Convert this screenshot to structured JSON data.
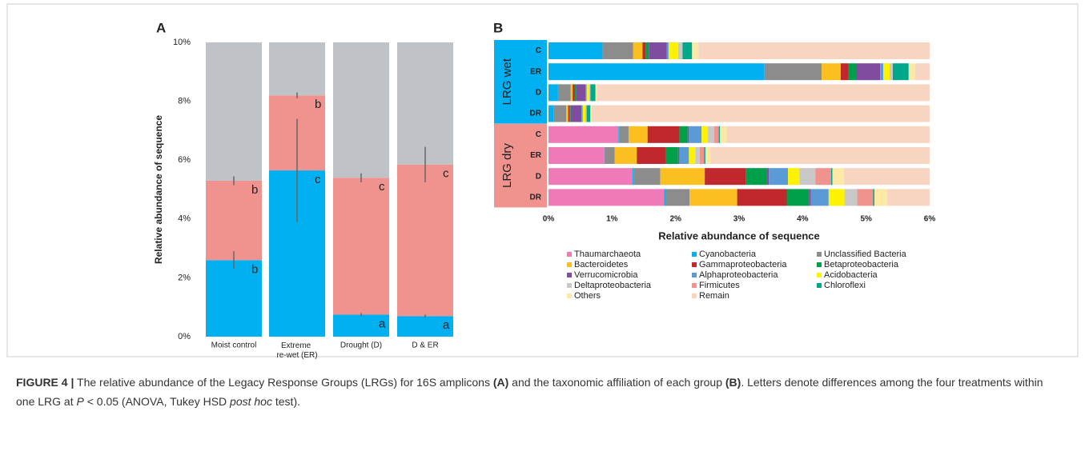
{
  "chart_data": [
    {
      "type": "stacked_bar",
      "panel": "A",
      "y_label": "Relative abundance of sequence",
      "categories": [
        "Moist control",
        "Extreme re-wet (ER)",
        "Drought (D)",
        "D & ER"
      ],
      "ylim": [
        0,
        10
      ],
      "yticks": [
        {
          "value": 0,
          "label": "0%"
        },
        {
          "value": 2,
          "label": "2%"
        },
        {
          "value": 4,
          "label": "4%"
        },
        {
          "value": 6,
          "label": "6%"
        },
        {
          "value": 8,
          "label": "8%"
        },
        {
          "value": 10,
          "label": "10%"
        }
      ],
      "series": [
        {
          "name": "LRG wet",
          "color": "#00b0f0",
          "values": [
            2.6,
            5.65,
            0.75,
            0.7
          ],
          "errors": [
            0.3,
            1.75,
            0.05,
            0.05
          ],
          "letters": [
            "b",
            "c",
            "a",
            "a"
          ]
        },
        {
          "name": "LRG dry",
          "color": "#f0928e",
          "values": [
            2.7,
            2.55,
            4.65,
            5.15
          ],
          "errors": [
            0.15,
            0.1,
            0.15,
            0.6
          ],
          "letters": [
            "b",
            "b",
            "c",
            "c"
          ]
        },
        {
          "name": "Others",
          "color": "#bfc3c8",
          "values": [
            4.7,
            1.8,
            4.6,
            4.15
          ]
        }
      ]
    },
    {
      "type": "stacked_barh",
      "panel": "B",
      "x_label": "Relative abundance of sequence",
      "group_labels": [
        "LRG wet",
        "LRG dry"
      ],
      "group_colors": [
        "#00b0f0",
        "#f0928e"
      ],
      "categories": [
        "C",
        "ER",
        "D",
        "DR",
        "C",
        "ER",
        "D",
        "DR"
      ],
      "xlim": [
        0,
        6
      ],
      "xticks": [
        {
          "value": 0,
          "label": "0%"
        },
        {
          "value": 1,
          "label": "1%"
        },
        {
          "value": 2,
          "label": "2%"
        },
        {
          "value": 3,
          "label": "3%"
        },
        {
          "value": 4,
          "label": "4%"
        },
        {
          "value": 5,
          "label": "5%"
        },
        {
          "value": 6,
          "label": "6%"
        }
      ],
      "series": [
        {
          "name": "Thaumarchaeota",
          "color": "#f07ab8",
          "values": [
            0,
            0,
            0,
            0,
            1.1,
            0.88,
            1.32,
            1.82
          ]
        },
        {
          "name": "Cyanobacteria",
          "color": "#00b0f0",
          "values": [
            0.85,
            3.4,
            0.15,
            0.08,
            0.01,
            0.01,
            0.02,
            0.02
          ]
        },
        {
          "name": "Unclassified Bacteria",
          "color": "#8c8c8c",
          "values": [
            0.48,
            0.9,
            0.2,
            0.2,
            0.15,
            0.15,
            0.42,
            0.38
          ]
        },
        {
          "name": "Bacteroidetes",
          "color": "#fbbf1f",
          "values": [
            0.15,
            0.3,
            0.03,
            0.03,
            0.3,
            0.35,
            0.7,
            0.75
          ]
        },
        {
          "name": "Gammaproteobacteria",
          "color": "#c0282d",
          "values": [
            0.05,
            0.12,
            0.03,
            0.02,
            0.5,
            0.45,
            0.65,
            0.78
          ]
        },
        {
          "name": "Betaproteobacteria",
          "color": "#00a04b",
          "values": [
            0.05,
            0.12,
            0.02,
            0.02,
            0.13,
            0.2,
            0.33,
            0.35
          ]
        },
        {
          "name": "Verrucomicrobia",
          "color": "#7f4ca0",
          "values": [
            0.28,
            0.38,
            0.15,
            0.17,
            0.02,
            0.02,
            0.03,
            0.03
          ]
        },
        {
          "name": "Alphaproteobacteria",
          "color": "#5b9bd5",
          "values": [
            0.03,
            0.05,
            0.02,
            0.02,
            0.2,
            0.15,
            0.3,
            0.28
          ]
        },
        {
          "name": "Acidobacteria",
          "color": "#fff200",
          "values": [
            0.15,
            0.1,
            0.04,
            0.04,
            0.1,
            0.1,
            0.18,
            0.25
          ]
        },
        {
          "name": "Deltaproteobacteria",
          "color": "#c8c8c8",
          "values": [
            0.07,
            0.05,
            0.02,
            0.02,
            0.1,
            0.07,
            0.25,
            0.2
          ]
        },
        {
          "name": "Firmicutes",
          "color": "#f0928e",
          "values": [
            0,
            0,
            0,
            0,
            0.07,
            0.07,
            0.25,
            0.25
          ]
        },
        {
          "name": "Chloroflexi",
          "color": "#00a88a",
          "values": [
            0.15,
            0.25,
            0.08,
            0.06,
            0.02,
            0.02,
            0.02,
            0.02
          ]
        },
        {
          "name": "Others",
          "color": "#fde9a6",
          "values": [
            0.1,
            0.1,
            0.02,
            0.02,
            0.1,
            0.08,
            0.18,
            0.2
          ]
        },
        {
          "name": "Remain",
          "color": "#f7d5c0",
          "values": [
            3.64,
            0.23,
            5.24,
            5.32,
            3.2,
            3.45,
            1.35,
            0.67
          ]
        }
      ]
    }
  ],
  "caption": [
    {
      "text": "FIGURE 4 |",
      "style": "bold"
    },
    {
      "text": " The relative abundance of the Legacy Response Groups (LRGs) for 16S amplicons ",
      "style": "normal"
    },
    {
      "text": "(A)",
      "style": "bold"
    },
    {
      "text": " and the taxonomic affiliation of each group ",
      "style": "normal"
    },
    {
      "text": "(B)",
      "style": "bold"
    },
    {
      "text": ". Letters denote differences among the four treatments within one LRG at ",
      "style": "normal"
    },
    {
      "text": "P",
      "style": "italic"
    },
    {
      "text": " < 0.05 (ANOVA, Tukey HSD ",
      "style": "normal"
    },
    {
      "text": "post hoc",
      "style": "italic"
    },
    {
      "text": " test).",
      "style": "normal"
    }
  ]
}
